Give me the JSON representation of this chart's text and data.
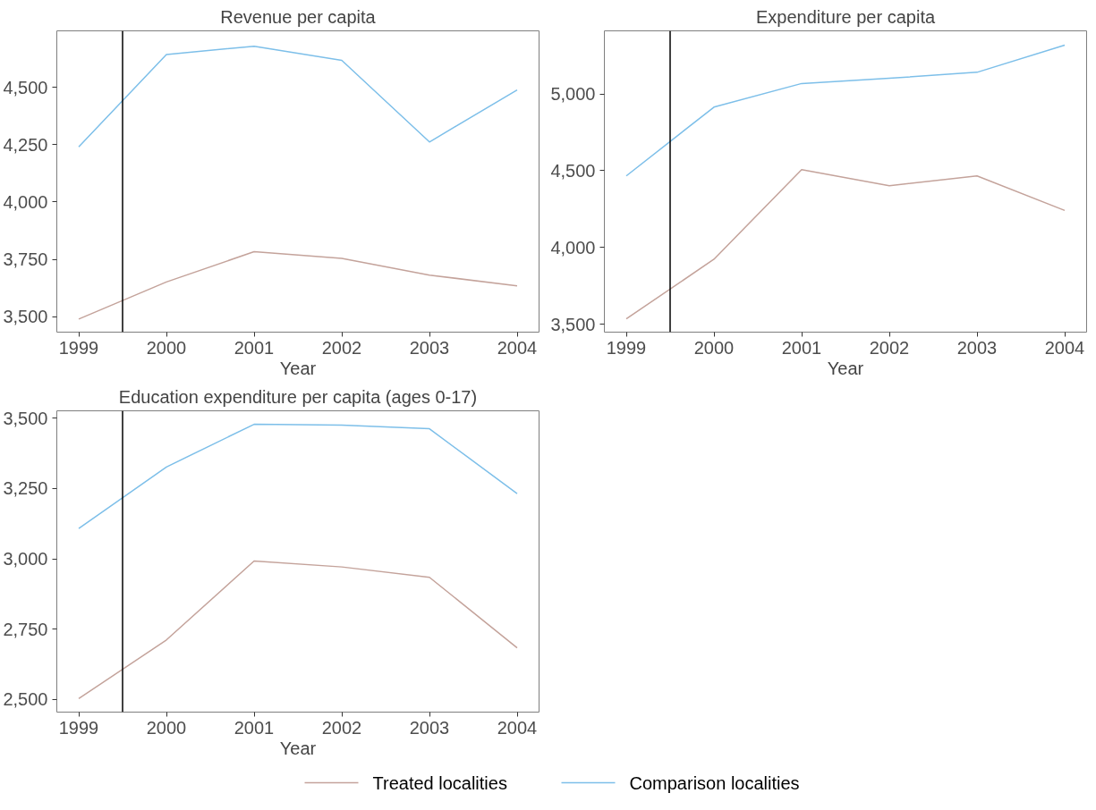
{
  "chart_data": [
    {
      "type": "line",
      "title": "Revenue per capita",
      "xlabel": "Year",
      "x": [
        1999,
        2000,
        2001,
        2002,
        2003,
        2004
      ],
      "xlim": [
        1998.75,
        2004.25
      ],
      "xticks": [
        1999,
        2000,
        2001,
        2002,
        2003,
        2004
      ],
      "ylim": [
        3432,
        4747
      ],
      "yticks": [
        {
          "value": 3500,
          "label": "3,500"
        },
        {
          "value": 3750,
          "label": "3,750"
        },
        {
          "value": 4000,
          "label": "4,000"
        },
        {
          "value": 4250,
          "label": "4,250"
        },
        {
          "value": 4500,
          "label": "4,500"
        }
      ],
      "grid": false,
      "ref_lines": [
        {
          "axis": "x",
          "value": 1999.5,
          "color": "#000000"
        }
      ],
      "series": [
        {
          "color": "#c4a39b",
          "values": [
            3489,
            3651,
            3783,
            3754,
            3681,
            3634
          ]
        },
        {
          "color": "#7dbfe9",
          "values": [
            4241,
            4644,
            4680,
            4618,
            4262,
            4489
          ]
        }
      ]
    },
    {
      "type": "line",
      "title": "Expenditure per capita",
      "xlabel": "Year",
      "x": [
        1999,
        2000,
        2001,
        2002,
        2003,
        2004
      ],
      "xlim": [
        1998.75,
        2004.25
      ],
      "xticks": [
        1999,
        2000,
        2001,
        2002,
        2003,
        2004
      ],
      "ylim": [
        3448,
        5411
      ],
      "yticks": [
        {
          "value": 3500,
          "label": "3,500"
        },
        {
          "value": 4000,
          "label": "4,000"
        },
        {
          "value": 4500,
          "label": "4,500"
        },
        {
          "value": 5000,
          "label": "5,000"
        }
      ],
      "grid": false,
      "ref_lines": [
        {
          "axis": "x",
          "value": 1999.5,
          "color": "#000000"
        }
      ],
      "series": [
        {
          "color": "#c4a39b",
          "values": [
            3534,
            3923,
            4507,
            4402,
            4466,
            4241
          ]
        },
        {
          "color": "#7dbfe9",
          "values": [
            4466,
            4914,
            5068,
            5102,
            5141,
            5318
          ]
        }
      ]
    },
    {
      "type": "line",
      "title": "Education expenditure per capita (ages 0-17)",
      "xlabel": "Year",
      "x": [
        1999,
        2000,
        2001,
        2002,
        2003,
        2004
      ],
      "xlim": [
        1998.75,
        2004.25
      ],
      "xticks": [
        1999,
        2000,
        2001,
        2002,
        2003,
        2004
      ],
      "ylim": [
        2454,
        3527
      ],
      "yticks": [
        {
          "value": 2500,
          "label": "2,500"
        },
        {
          "value": 2750,
          "label": "2,750"
        },
        {
          "value": 3000,
          "label": "3,000"
        },
        {
          "value": 3250,
          "label": "3,250"
        },
        {
          "value": 3500,
          "label": "3,500"
        }
      ],
      "grid": false,
      "legend": "bottom",
      "ref_lines": [
        {
          "axis": "x",
          "value": 1999.5,
          "color": "#000000"
        }
      ],
      "series": [
        {
          "name": "Treated localities",
          "color": "#c4a39b",
          "values": [
            2502,
            2711,
            2992,
            2971,
            2934,
            2683
          ]
        },
        {
          "name": "Comparison localities",
          "color": "#7dbfe9",
          "values": [
            3108,
            3327,
            3479,
            3476,
            3463,
            3232
          ]
        }
      ]
    }
  ]
}
